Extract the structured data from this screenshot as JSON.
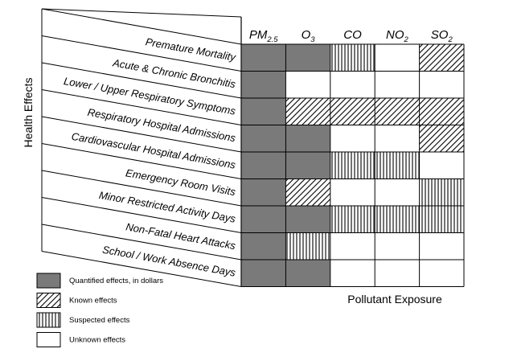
{
  "axis_labels": {
    "y": "Health Effects",
    "x": "Pollutant Exposure"
  },
  "pollutants": [
    {
      "base": "PM",
      "sub": "2.5"
    },
    {
      "base": "O",
      "sub": "3"
    },
    {
      "base": "CO",
      "sub": ""
    },
    {
      "base": "NO",
      "sub": "2"
    },
    {
      "base": "SO",
      "sub": "2"
    }
  ],
  "health_effects": [
    "Premature Mortality",
    "Acute & Chronic Bronchitis",
    "Lower / Upper Respiratory Symptoms",
    "Respiratory Hospital Admissions",
    "Cardiovascular Hospital Admissions",
    "Emergency Room Visits",
    "Minor Restricted Activity Days",
    "Non-Fatal Heart Attacks",
    "School /  Work Absence Days"
  ],
  "matrix": [
    [
      "quantified",
      "quantified",
      "suspected",
      "unknown",
      "known"
    ],
    [
      "quantified",
      "unknown",
      "unknown",
      "unknown",
      "unknown"
    ],
    [
      "quantified",
      "known",
      "known",
      "known",
      "known"
    ],
    [
      "quantified",
      "quantified",
      "unknown",
      "unknown",
      "known"
    ],
    [
      "quantified",
      "quantified",
      "suspected",
      "suspected",
      "unknown"
    ],
    [
      "quantified",
      "known",
      "unknown",
      "unknown",
      "suspected"
    ],
    [
      "quantified",
      "quantified",
      "suspected",
      "suspected",
      "suspected"
    ],
    [
      "quantified",
      "suspected",
      "unknown",
      "unknown",
      "unknown"
    ],
    [
      "quantified",
      "quantified",
      "unknown",
      "unknown",
      "unknown"
    ]
  ],
  "legend": [
    {
      "key": "quantified",
      "label": "Quantified effects, in dollars"
    },
    {
      "key": "known",
      "label": "Known effects"
    },
    {
      "key": "suspected",
      "label": "Suspected effects"
    },
    {
      "key": "unknown",
      "label": "Unknown effects"
    }
  ],
  "colors": {
    "quantified": "#7a7a7a",
    "hatch": "#000000",
    "unknown": "#ffffff",
    "line": "#000000"
  }
}
